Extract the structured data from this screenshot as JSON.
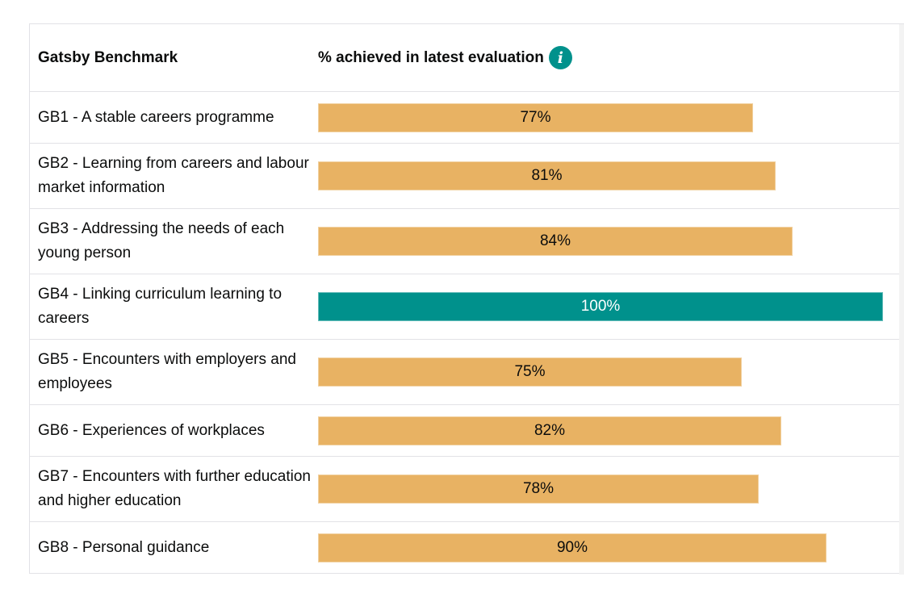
{
  "header": {
    "col1": "Gatsby Benchmark",
    "col2": "% achieved in latest evaluation",
    "info_icon": "info-icon"
  },
  "colors": {
    "partial": "#e8b263",
    "full": "#00918c",
    "text_dark": "#0b0c0c",
    "text_light": "#ffffff"
  },
  "chart_data": {
    "type": "bar",
    "orientation": "horizontal",
    "title": "",
    "xlabel": "% achieved in latest evaluation",
    "ylabel": "Gatsby Benchmark",
    "xlim": [
      0,
      100
    ],
    "categories": [
      "GB1 - A stable careers programme",
      "GB2 - Learning from careers and labour market information",
      "GB3 - Addressing the needs of each young person",
      "GB4 - Linking curriculum learning to careers",
      "GB5 - Encounters with employers and employees",
      "GB6 - Experiences of workplaces",
      "GB7 - Encounters with further education and higher education",
      "GB8 - Personal guidance"
    ],
    "values": [
      77,
      81,
      84,
      100,
      75,
      82,
      78,
      90
    ],
    "labels": [
      "77%",
      "81%",
      "84%",
      "100%",
      "75%",
      "82%",
      "78%",
      "90%"
    ],
    "grid": false,
    "legend": "none"
  }
}
